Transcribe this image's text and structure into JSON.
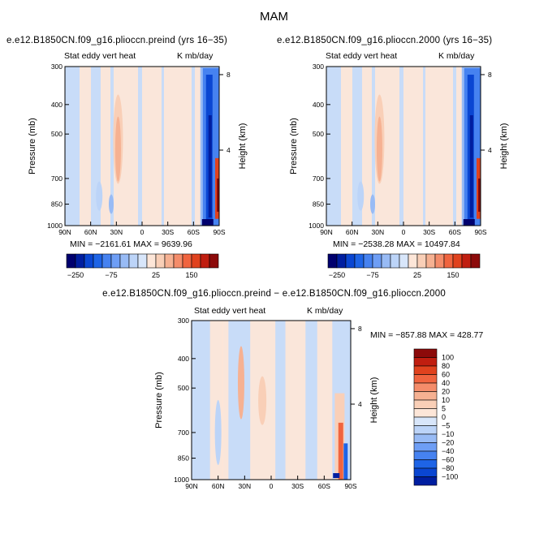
{
  "figure": {
    "title": "MAM"
  },
  "colors": {
    "levels_rgb": [
      "#00006e",
      "#001ea0",
      "#0a46d2",
      "#1e64e6",
      "#4682f0",
      "#6e9ef5",
      "#98bbf5",
      "#bcd4f8",
      "#d8e6fa",
      "#fde6d8",
      "#f9cfb7",
      "#f6b192",
      "#f48c6a",
      "#f0643f",
      "#e0421e",
      "#c01e10",
      "#8c0a0a"
    ]
  },
  "panels": [
    {
      "id": "preind",
      "title": "e.e12.B1850CN.f09_g16.plioccn.preind (yrs 16−35)",
      "left_label": "Stat eddy vert heat",
      "right_label": "K mb/day",
      "ylabel": "Pressure (mb)",
      "y2label": "Height (km)",
      "min_max": "MIN = −2161.61   MAX = 9639.96"
    },
    {
      "id": "y2000",
      "title": "e.e12.B1850CN.f09_g16.plioccn.2000 (yrs 16−35)",
      "left_label": "Stat eddy vert heat",
      "right_label": "K mb/day",
      "ylabel": "Pressure (mb)",
      "y2label": "Height (km)",
      "min_max": "MIN = −2538.28   MAX = 10497.84"
    },
    {
      "id": "diff",
      "title": "e.e12.B1850CN.f09_g16.plioccn.preind − e.e12.B1850CN.f09_g16.plioccn.2000",
      "left_label": "Stat eddy vert heat",
      "right_label": "K mb/day",
      "ylabel": "Pressure (mb)",
      "y2label": "Height (km)",
      "min_max": "MIN = −857.88   MAX = 428.77"
    }
  ],
  "chart_data": [
    {
      "type": "heatmap",
      "subject": "Stat eddy vert heat (preind)",
      "units": "K mb/day",
      "x_ticks": [
        "90N",
        "60N",
        "30N",
        "0",
        "30S",
        "60S",
        "90S"
      ],
      "x_values": [
        90,
        60,
        30,
        0,
        -30,
        -60,
        -90
      ],
      "y_ticks": [
        "300",
        "400",
        "500",
        "700",
        "850",
        "1000"
      ],
      "y_values": [
        300,
        400,
        500,
        700,
        850,
        1000
      ],
      "y2_ticks": [
        "8",
        "4"
      ],
      "y2_values_km": [
        8,
        4
      ],
      "colorbar_labels": [
        "−250",
        "−75",
        "25",
        "150"
      ],
      "min": -2161.61,
      "max": 9639.96
    },
    {
      "type": "heatmap",
      "subject": "Stat eddy vert heat (2000)",
      "units": "K mb/day",
      "x_ticks": [
        "90N",
        "60N",
        "30N",
        "0",
        "30S",
        "60S",
        "90S"
      ],
      "x_values": [
        90,
        60,
        30,
        0,
        -30,
        -60,
        -90
      ],
      "y_ticks": [
        "300",
        "400",
        "500",
        "700",
        "850",
        "1000"
      ],
      "y_values": [
        300,
        400,
        500,
        700,
        850,
        1000
      ],
      "y2_ticks": [
        "8",
        "4"
      ],
      "y2_values_km": [
        8,
        4
      ],
      "colorbar_labels": [
        "−250",
        "−75",
        "25",
        "150"
      ],
      "min": -2538.28,
      "max": 10497.84
    },
    {
      "type": "heatmap",
      "subject": "Stat eddy vert heat (preind − 2000)",
      "units": "K mb/day",
      "x_ticks": [
        "90N",
        "60N",
        "30N",
        "0",
        "30S",
        "60S",
        "90S"
      ],
      "x_values": [
        90,
        60,
        30,
        0,
        -30,
        -60,
        -90
      ],
      "y_ticks": [
        "300",
        "400",
        "500",
        "700",
        "850",
        "1000"
      ],
      "y_values": [
        300,
        400,
        500,
        700,
        850,
        1000
      ],
      "y2_ticks": [
        "8",
        "4"
      ],
      "y2_values_km": [
        8,
        4
      ],
      "colorbar_labels": [
        "100",
        "80",
        "60",
        "40",
        "20",
        "10",
        "5",
        "0",
        "−5",
        "−10",
        "−20",
        "−40",
        "−60",
        "−80",
        "−100"
      ],
      "min": -857.88,
      "max": 428.77
    }
  ]
}
